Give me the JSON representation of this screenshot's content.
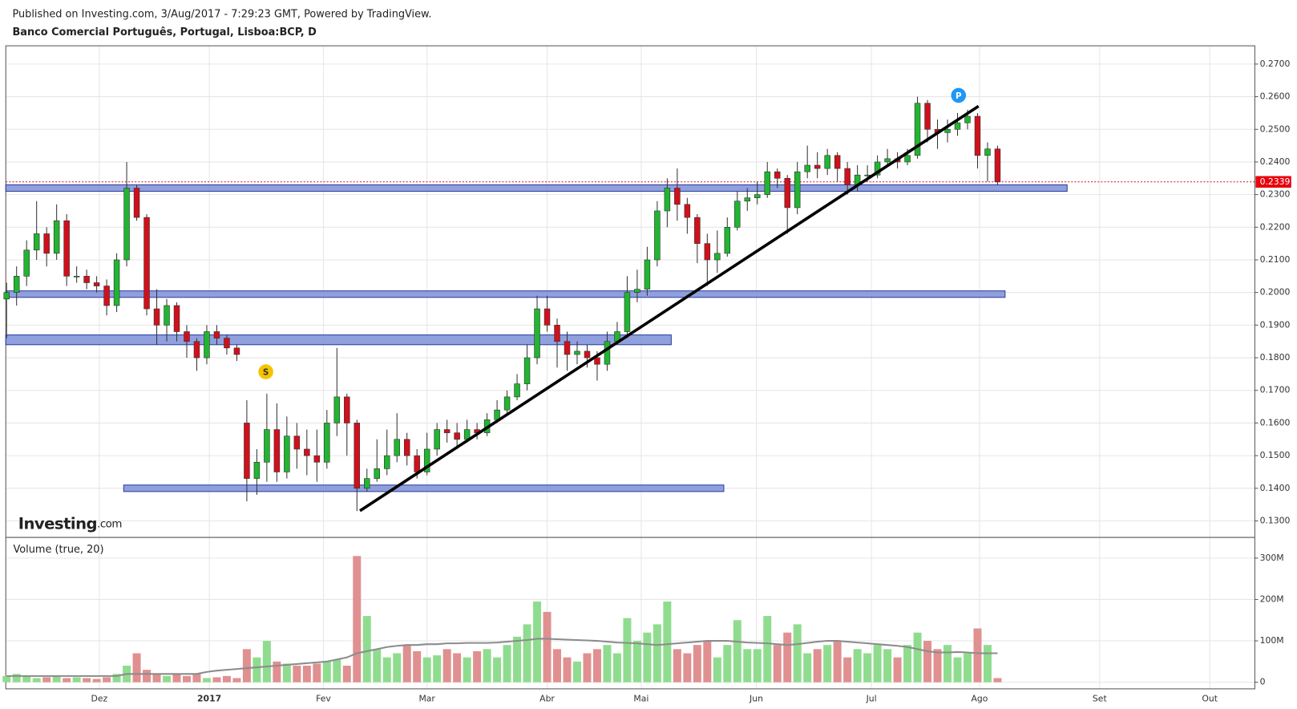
{
  "header": "Published on Investing.com, 3/Aug/2017 - 7:29:23 GMT, Powered by TradingView.",
  "chart_data": {
    "type": "candlestick",
    "title": "Banco Comercial Português, Portugal, Lisboa:BCP, D",
    "logo": {
      "name": "Investing",
      "suffix": ".com"
    },
    "up_color": "#21b531",
    "down_color": "#d0101c",
    "xlim": [
      -0.08,
      124.7
    ],
    "xticks": [
      {
        "value": 9.26,
        "label": "Dez"
      },
      {
        "value": 20.25,
        "label": "2017"
      },
      {
        "value": 31.65,
        "label": "Fev"
      },
      {
        "value": 42,
        "label": "Mar"
      },
      {
        "value": 54,
        "label": "Abr"
      },
      {
        "value": 63.4,
        "label": "Mai"
      },
      {
        "value": 74.9,
        "label": "Jun"
      },
      {
        "value": 86.4,
        "label": "Jul"
      },
      {
        "value": 97.2,
        "label": "Ago"
      },
      {
        "value": 109.2,
        "label": "Set"
      },
      {
        "value": 120.2,
        "label": "Out"
      }
    ],
    "ylim": [
      0.1252,
      0.2756
    ],
    "yticks": [
      {
        "value": 0.13,
        "label": "0.1300"
      },
      {
        "value": 0.14,
        "label": "0.1400"
      },
      {
        "value": 0.15,
        "label": "0.1500"
      },
      {
        "value": 0.16,
        "label": "0.1600"
      },
      {
        "value": 0.17,
        "label": "0.1700"
      },
      {
        "value": 0.18,
        "label": "0.1800"
      },
      {
        "value": 0.19,
        "label": "0.1900"
      },
      {
        "value": 0.2,
        "label": "0.2000"
      },
      {
        "value": 0.21,
        "label": "0.2100"
      },
      {
        "value": 0.22,
        "label": "0.2200"
      },
      {
        "value": 0.23,
        "label": "0.2300"
      },
      {
        "value": 0.24,
        "label": "0.2400"
      },
      {
        "value": 0.25,
        "label": "0.2500"
      },
      {
        "value": 0.26,
        "label": "0.2600"
      },
      {
        "value": 0.27,
        "label": "0.2700"
      }
    ],
    "grid": true,
    "last": 0.2339,
    "candles": [
      [
        0.198,
        0.203,
        0.186,
        0.2
      ],
      [
        0.2,
        0.208,
        0.196,
        0.205
      ],
      [
        0.205,
        0.216,
        0.202,
        0.213
      ],
      [
        0.213,
        0.228,
        0.21,
        0.218
      ],
      [
        0.218,
        0.22,
        0.208,
        0.212
      ],
      [
        0.212,
        0.227,
        0.21,
        0.222
      ],
      [
        0.222,
        0.224,
        0.202,
        0.205
      ],
      [
        0.205,
        0.208,
        0.203,
        0.205
      ],
      [
        0.205,
        0.207,
        0.201,
        0.203
      ],
      [
        0.203,
        0.205,
        0.2,
        0.202
      ],
      [
        0.202,
        0.204,
        0.193,
        0.196
      ],
      [
        0.196,
        0.212,
        0.194,
        0.21
      ],
      [
        0.21,
        0.24,
        0.208,
        0.232
      ],
      [
        0.232,
        0.233,
        0.222,
        0.223
      ],
      [
        0.223,
        0.224,
        0.193,
        0.195
      ],
      [
        0.195,
        0.201,
        0.184,
        0.19
      ],
      [
        0.19,
        0.198,
        0.185,
        0.196
      ],
      [
        0.196,
        0.197,
        0.185,
        0.188
      ],
      [
        0.188,
        0.19,
        0.18,
        0.185
      ],
      [
        0.185,
        0.186,
        0.176,
        0.18
      ],
      [
        0.18,
        0.19,
        0.178,
        0.188
      ],
      [
        0.188,
        0.19,
        0.184,
        0.186
      ],
      [
        0.186,
        0.187,
        0.181,
        0.183
      ],
      [
        0.183,
        0.184,
        0.179,
        0.181
      ],
      [
        0.16,
        0.167,
        0.136,
        0.143
      ],
      [
        0.143,
        0.152,
        0.138,
        0.148
      ],
      [
        0.148,
        0.169,
        0.142,
        0.158
      ],
      [
        0.158,
        0.166,
        0.142,
        0.145
      ],
      [
        0.145,
        0.162,
        0.143,
        0.156
      ],
      [
        0.156,
        0.16,
        0.146,
        0.152
      ],
      [
        0.152,
        0.158,
        0.144,
        0.15
      ],
      [
        0.15,
        0.158,
        0.142,
        0.148
      ],
      [
        0.148,
        0.164,
        0.146,
        0.16
      ],
      [
        0.16,
        0.183,
        0.156,
        0.168
      ],
      [
        0.168,
        0.169,
        0.15,
        0.16
      ],
      [
        0.16,
        0.161,
        0.133,
        0.14
      ],
      [
        0.14,
        0.146,
        0.139,
        0.143
      ],
      [
        0.143,
        0.155,
        0.142,
        0.146
      ],
      [
        0.146,
        0.158,
        0.144,
        0.15
      ],
      [
        0.15,
        0.163,
        0.148,
        0.155
      ],
      [
        0.155,
        0.157,
        0.147,
        0.15
      ],
      [
        0.15,
        0.152,
        0.143,
        0.145
      ],
      [
        0.145,
        0.157,
        0.144,
        0.152
      ],
      [
        0.152,
        0.16,
        0.15,
        0.158
      ],
      [
        0.158,
        0.161,
        0.154,
        0.157
      ],
      [
        0.157,
        0.16,
        0.152,
        0.155
      ],
      [
        0.155,
        0.161,
        0.154,
        0.158
      ],
      [
        0.158,
        0.16,
        0.155,
        0.157
      ],
      [
        0.157,
        0.163,
        0.156,
        0.161
      ],
      [
        0.161,
        0.167,
        0.16,
        0.164
      ],
      [
        0.164,
        0.17,
        0.163,
        0.168
      ],
      [
        0.168,
        0.175,
        0.167,
        0.172
      ],
      [
        0.172,
        0.184,
        0.17,
        0.18
      ],
      [
        0.18,
        0.199,
        0.178,
        0.195
      ],
      [
        0.195,
        0.199,
        0.188,
        0.19
      ],
      [
        0.19,
        0.192,
        0.177,
        0.185
      ],
      [
        0.185,
        0.188,
        0.176,
        0.181
      ],
      [
        0.181,
        0.185,
        0.178,
        0.182
      ],
      [
        0.182,
        0.184,
        0.177,
        0.18
      ],
      [
        0.18,
        0.182,
        0.173,
        0.178
      ],
      [
        0.178,
        0.188,
        0.176,
        0.185
      ],
      [
        0.185,
        0.191,
        0.184,
        0.188
      ],
      [
        0.188,
        0.205,
        0.186,
        0.2
      ],
      [
        0.2,
        0.207,
        0.197,
        0.201
      ],
      [
        0.201,
        0.214,
        0.199,
        0.21
      ],
      [
        0.21,
        0.228,
        0.208,
        0.225
      ],
      [
        0.225,
        0.235,
        0.22,
        0.232
      ],
      [
        0.232,
        0.238,
        0.222,
        0.227
      ],
      [
        0.227,
        0.229,
        0.218,
        0.223
      ],
      [
        0.223,
        0.224,
        0.209,
        0.215
      ],
      [
        0.215,
        0.218,
        0.202,
        0.21
      ],
      [
        0.21,
        0.219,
        0.206,
        0.212
      ],
      [
        0.212,
        0.223,
        0.211,
        0.22
      ],
      [
        0.22,
        0.231,
        0.219,
        0.228
      ],
      [
        0.228,
        0.232,
        0.225,
        0.229
      ],
      [
        0.229,
        0.234,
        0.227,
        0.23
      ],
      [
        0.23,
        0.24,
        0.229,
        0.237
      ],
      [
        0.237,
        0.238,
        0.232,
        0.235
      ],
      [
        0.235,
        0.236,
        0.218,
        0.226
      ],
      [
        0.226,
        0.24,
        0.224,
        0.237
      ],
      [
        0.237,
        0.245,
        0.235,
        0.239
      ],
      [
        0.239,
        0.243,
        0.235,
        0.238
      ],
      [
        0.238,
        0.244,
        0.236,
        0.242
      ],
      [
        0.242,
        0.243,
        0.234,
        0.238
      ],
      [
        0.238,
        0.24,
        0.23,
        0.233
      ],
      [
        0.233,
        0.239,
        0.231,
        0.236
      ],
      [
        0.236,
        0.239,
        0.234,
        0.236
      ],
      [
        0.236,
        0.242,
        0.235,
        0.24
      ],
      [
        0.24,
        0.244,
        0.239,
        0.241
      ],
      [
        0.241,
        0.243,
        0.238,
        0.24
      ],
      [
        0.24,
        0.244,
        0.239,
        0.242
      ],
      [
        0.242,
        0.26,
        0.241,
        0.258
      ],
      [
        0.258,
        0.259,
        0.246,
        0.25
      ],
      [
        0.25,
        0.253,
        0.244,
        0.249
      ],
      [
        0.249,
        0.253,
        0.246,
        0.25
      ],
      [
        0.25,
        0.255,
        0.248,
        0.252
      ],
      [
        0.252,
        0.256,
        0.25,
        0.254
      ],
      [
        0.254,
        0.255,
        0.238,
        0.242
      ],
      [
        0.242,
        0.246,
        0.234,
        0.244
      ],
      [
        0.244,
        0.245,
        0.233,
        0.2339
      ]
    ],
    "zones": [
      [
        0.231,
        0.233,
        -0.08,
        105.95
      ],
      [
        0.1985,
        0.2005,
        -0.08,
        99.75
      ],
      [
        0.184,
        0.187,
        -0.08,
        66.4
      ],
      [
        0.139,
        0.141,
        11.7,
        71.65
      ]
    ],
    "trendline": {
      "x": [
        35.3,
        97.1
      ],
      "y": [
        0.1331,
        0.2571
      ]
    },
    "markers": [
      {
        "label": "S",
        "x": 25.9,
        "y": 0.1757,
        "color": "#f5c400"
      },
      {
        "label": "P",
        "x": 95.1,
        "y": 0.2604,
        "color": "#2196f3"
      }
    ],
    "volume": {
      "title": "Volume (true, 20)",
      "up_color": "#8fdc8f",
      "down_color": "#e09090",
      "ma_color": "#8c8c8c",
      "ylim": [
        -16000000,
        348000000
      ],
      "yticks": [
        0,
        {
          "value": 100000000,
          "label": "100M"
        },
        {
          "value": 200000000,
          "label": "200M"
        },
        {
          "value": 300000000,
          "label": "300M"
        }
      ],
      "values": [
        15000000,
        20000000,
        15000000,
        10000000,
        12000000,
        15000000,
        10000000,
        12000000,
        10000000,
        8000000,
        12000000,
        20000000,
        40000000,
        70000000,
        30000000,
        20000000,
        15000000,
        20000000,
        15000000,
        20000000,
        10000000,
        12000000,
        15000000,
        10000000,
        80000000,
        60000000,
        100000000,
        50000000,
        45000000,
        40000000,
        40000000,
        45000000,
        50000000,
        55000000,
        40000000,
        305000000,
        160000000,
        80000000,
        60000000,
        70000000,
        90000000,
        75000000,
        60000000,
        65000000,
        80000000,
        70000000,
        60000000,
        75000000,
        80000000,
        60000000,
        90000000,
        110000000,
        140000000,
        195000000,
        170000000,
        80000000,
        60000000,
        50000000,
        70000000,
        80000000,
        90000000,
        70000000,
        155000000,
        100000000,
        120000000,
        140000000,
        195000000,
        80000000,
        70000000,
        90000000,
        100000000,
        60000000,
        90000000,
        150000000,
        80000000,
        80000000,
        160000000,
        90000000,
        120000000,
        140000000,
        70000000,
        80000000,
        90000000,
        100000000,
        60000000,
        80000000,
        70000000,
        90000000,
        80000000,
        60000000,
        90000000,
        120000000,
        100000000,
        80000000,
        90000000,
        60000000,
        70000000,
        130000000,
        90000000,
        10000000
      ],
      "ma": [
        15000000,
        15000000,
        15000000,
        15000000,
        15000000,
        15000000,
        15000000,
        15000000,
        15000000,
        15000000,
        15000000,
        15000000,
        20000000,
        20000000,
        20000000,
        20000000,
        20000000,
        20000000,
        20000000,
        20000000,
        25000000,
        28000000,
        30000000,
        32000000,
        34000000,
        36000000,
        38000000,
        40000000,
        42000000,
        44000000,
        46000000,
        48000000,
        50000000,
        55000000,
        60000000,
        70000000,
        75000000,
        80000000,
        85000000,
        88000000,
        90000000,
        90000000,
        92000000,
        92000000,
        94000000,
        94000000,
        95000000,
        95000000,
        95000000,
        96000000,
        98000000,
        100000000,
        102000000,
        105000000,
        105000000,
        104000000,
        103000000,
        102000000,
        101000000,
        100000000,
        98000000,
        96000000,
        95000000,
        94000000,
        92000000,
        90000000,
        92000000,
        94000000,
        96000000,
        98000000,
        100000000,
        100000000,
        100000000,
        98000000,
        96000000,
        95000000,
        94000000,
        92000000,
        90000000,
        92000000,
        95000000,
        98000000,
        100000000,
        100000000,
        98000000,
        96000000,
        94000000,
        92000000,
        90000000,
        88000000,
        85000000,
        80000000,
        75000000,
        72000000,
        72000000,
        73000000,
        72000000,
        70000000,
        70000000,
        70000000
      ]
    }
  }
}
